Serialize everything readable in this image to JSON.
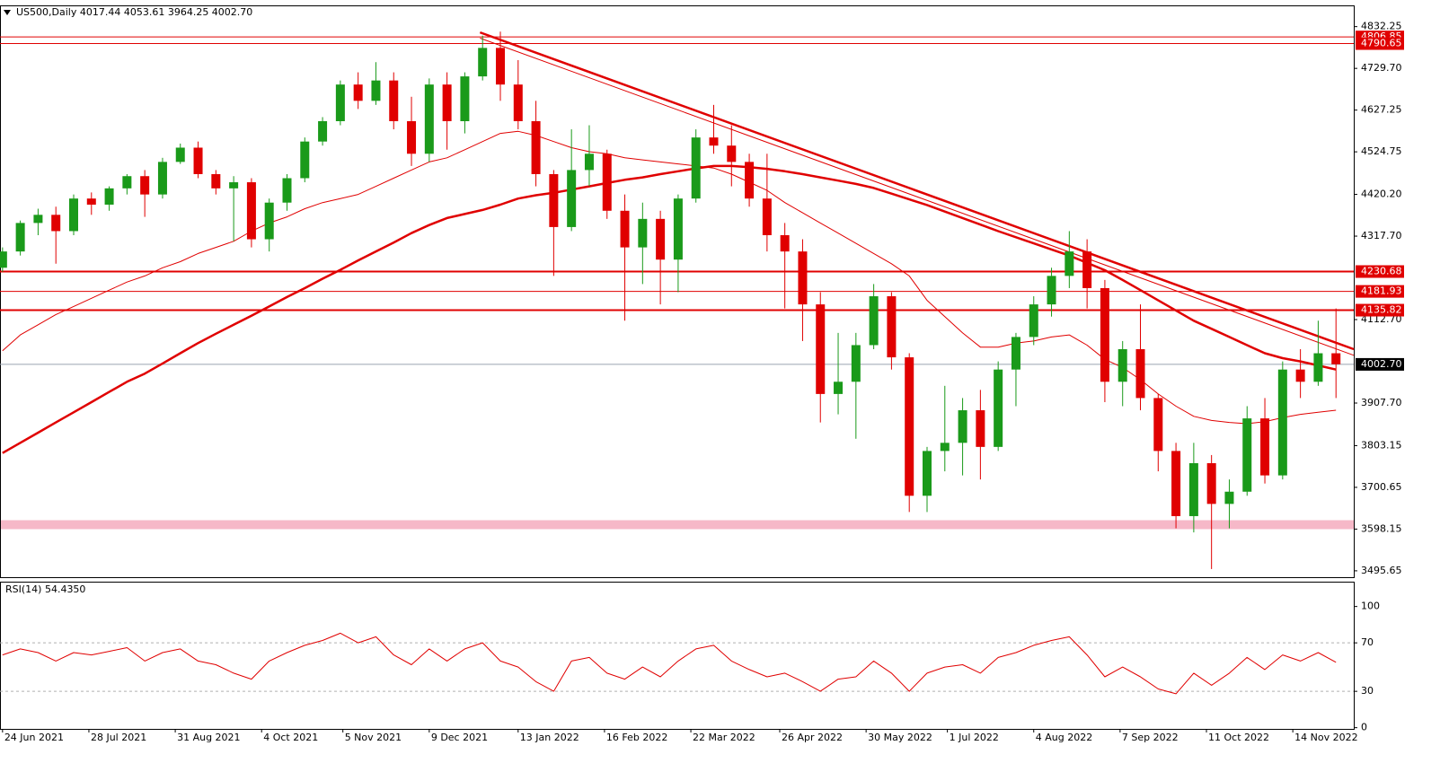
{
  "chart_data": {
    "type": "candlestick",
    "title": "US500,Daily  4017.44 4053.61 3964.25 4002.70",
    "x": [
      "2021-06-24",
      "2021-07-01",
      "2021-07-08",
      "2021-07-15",
      "2021-07-22",
      "2021-07-29",
      "2021-08-05",
      "2021-08-12",
      "2021-08-19",
      "2021-08-26",
      "2021-09-02",
      "2021-09-09",
      "2021-09-16",
      "2021-09-23",
      "2021-09-30",
      "2021-10-07",
      "2021-10-14",
      "2021-10-21",
      "2021-10-28",
      "2021-11-04",
      "2021-11-11",
      "2021-11-18",
      "2021-11-25",
      "2021-12-02",
      "2021-12-09",
      "2021-12-16",
      "2021-12-23",
      "2021-12-30",
      "2022-01-06",
      "2022-01-13",
      "2022-01-20",
      "2022-01-27",
      "2022-02-03",
      "2022-02-10",
      "2022-02-17",
      "2022-02-24",
      "2022-03-03",
      "2022-03-10",
      "2022-03-17",
      "2022-03-24",
      "2022-03-31",
      "2022-04-07",
      "2022-04-14",
      "2022-04-21",
      "2022-04-28",
      "2022-05-05",
      "2022-05-12",
      "2022-05-19",
      "2022-05-26",
      "2022-06-02",
      "2022-06-09",
      "2022-06-16",
      "2022-06-23",
      "2022-06-30",
      "2022-07-07",
      "2022-07-14",
      "2022-07-21",
      "2022-07-28",
      "2022-08-04",
      "2022-08-11",
      "2022-08-18",
      "2022-08-25",
      "2022-09-01",
      "2022-09-08",
      "2022-09-15",
      "2022-09-22",
      "2022-09-29",
      "2022-10-06",
      "2022-10-13",
      "2022-10-20",
      "2022-10-27",
      "2022-11-03",
      "2022-11-10",
      "2022-11-17",
      "2022-11-24",
      "2022-12-01"
    ],
    "open": [
      4240,
      4280,
      4350,
      4370,
      4330,
      4410,
      4395,
      4435,
      4465,
      4420,
      4500,
      4535,
      4470,
      4435,
      4450,
      4310,
      4400,
      4460,
      4550,
      4600,
      4690,
      4650,
      4700,
      4600,
      4520,
      4690,
      4600,
      4710,
      4780,
      4690,
      4600,
      4470,
      4340,
      4480,
      4520,
      4380,
      4290,
      4360,
      4260,
      4410,
      4560,
      4540,
      4500,
      4410,
      4320,
      4280,
      4150,
      3930,
      3960,
      4050,
      4170,
      4020,
      3680,
      3790,
      3810,
      3890,
      3800,
      3990,
      4070,
      4150,
      4220,
      4280,
      4190,
      3960,
      4040,
      3920,
      3790,
      3630,
      3760,
      3660,
      3690,
      3870,
      3730,
      3990,
      3960,
      4030
    ],
    "high": [
      4290,
      4356,
      4385,
      4390,
      4420,
      4425,
      4440,
      4470,
      4480,
      4510,
      4545,
      4550,
      4480,
      4465,
      4460,
      4410,
      4470,
      4560,
      4610,
      4700,
      4720,
      4745,
      4720,
      4660,
      4705,
      4720,
      4720,
      4810,
      4820,
      4750,
      4650,
      4480,
      4580,
      4590,
      4530,
      4420,
      4400,
      4380,
      4420,
      4580,
      4640,
      4590,
      4520,
      4520,
      4350,
      4310,
      4180,
      4080,
      4080,
      4200,
      4180,
      4030,
      3800,
      3950,
      3920,
      3940,
      4010,
      4080,
      4170,
      4240,
      4330,
      4310,
      4210,
      4060,
      4150,
      3930,
      3810,
      3810,
      3780,
      3720,
      3900,
      3920,
      4010,
      4040,
      4110,
      4140
    ],
    "low": [
      4230,
      4270,
      4320,
      4250,
      4320,
      4370,
      4380,
      4420,
      4365,
      4410,
      4495,
      4460,
      4420,
      4305,
      4290,
      4280,
      4380,
      4450,
      4540,
      4590,
      4630,
      4640,
      4580,
      4490,
      4500,
      4530,
      4570,
      4700,
      4650,
      4580,
      4440,
      4220,
      4330,
      4440,
      4360,
      4110,
      4200,
      4150,
      4180,
      4400,
      4520,
      4440,
      4390,
      4280,
      4140,
      4060,
      3860,
      3880,
      3820,
      4040,
      3990,
      3640,
      3640,
      3740,
      3730,
      3720,
      3790,
      3900,
      4050,
      4120,
      4190,
      4140,
      3910,
      3900,
      3890,
      3740,
      3600,
      3590,
      3500,
      3600,
      3680,
      3710,
      3720,
      3920,
      3950,
      3920
    ],
    "close": [
      4280,
      4350,
      4370,
      4330,
      4410,
      4395,
      4435,
      4465,
      4420,
      4500,
      4535,
      4470,
      4435,
      4450,
      4310,
      4400,
      4460,
      4550,
      4600,
      4690,
      4650,
      4700,
      4600,
      4520,
      4690,
      4600,
      4710,
      4780,
      4690,
      4600,
      4470,
      4340,
      4480,
      4520,
      4380,
      4290,
      4360,
      4260,
      4410,
      4560,
      4540,
      4500,
      4410,
      4320,
      4280,
      4150,
      3930,
      3960,
      4050,
      4170,
      4020,
      3680,
      3790,
      3810,
      3890,
      3800,
      3990,
      4070,
      4150,
      4220,
      4280,
      4190,
      3960,
      4040,
      3920,
      3790,
      3630,
      3760,
      3660,
      3690,
      3870,
      3730,
      3990,
      3960,
      4030,
      4003
    ],
    "up_color": "#1a9a1a",
    "down_color": "#e00000",
    "xlim": [
      "2021-06-23",
      "2022-12-08"
    ],
    "xticks": [
      {
        "value": "2021-06-24",
        "label": "24 Jun 2021"
      },
      {
        "value": "2021-07-28",
        "label": "28 Jul 2021"
      },
      {
        "value": "2021-08-31",
        "label": "31 Aug 2021"
      },
      {
        "value": "2021-10-04",
        "label": "4 Oct 2021"
      },
      {
        "value": "2021-11-05",
        "label": "5 Nov 2021"
      },
      {
        "value": "2021-12-09",
        "label": "9 Dec 2021"
      },
      {
        "value": "2022-01-13",
        "label": "13 Jan 2022"
      },
      {
        "value": "2022-02-16",
        "label": "16 Feb 2022"
      },
      {
        "value": "2022-03-22",
        "label": "22 Mar 2022"
      },
      {
        "value": "2022-04-26",
        "label": "26 Apr 2022"
      },
      {
        "value": "2022-05-30",
        "label": "30 May 2022"
      },
      {
        "value": "2022-07-01",
        "label": "1 Jul 2022"
      },
      {
        "value": "2022-08-04",
        "label": "4 Aug 2022"
      },
      {
        "value": "2022-09-07",
        "label": "7 Sep 2022"
      },
      {
        "value": "2022-10-11",
        "label": "11 Oct 2022"
      },
      {
        "value": "2022-11-14",
        "label": "14 Nov 2022"
      }
    ],
    "ylim": [
      3480,
      4880
    ],
    "yticks": [
      4832.25,
      {
        "value": 4729.7,
        "label": "4729.70"
      },
      4627.25,
      4524.75,
      {
        "value": 4420.2,
        "label": "4420.20"
      },
      {
        "value": 4317.7,
        "label": "4317.70"
      },
      {
        "value": 4112.7,
        "label": "4112.70"
      },
      {
        "value": 3907.7,
        "label": "3907.70"
      },
      3803.15,
      3700.65,
      3598.15,
      3495.65
    ],
    "lines": [
      {
        "color": "#e00000",
        "width": 1,
        "values": [
          4036,
          4075,
          4100,
          4125,
          4145,
          4165,
          4185,
          4205,
          4220,
          4240,
          4255,
          4275,
          4290,
          4305,
          4330,
          4350,
          4365,
          4385,
          4400,
          4410,
          4420,
          4440,
          4460,
          4480,
          4500,
          4510,
          4530,
          4550,
          4570,
          4575,
          4565,
          4550,
          4535,
          4525,
          4520,
          4510,
          4505,
          4500,
          4495,
          4490,
          4485,
          4470,
          4450,
          4430,
          4400,
          4375,
          4350,
          4325,
          4300,
          4275,
          4250,
          4220,
          4160,
          4120,
          4080,
          4045,
          4045,
          4055,
          4060,
          4070,
          4075,
          4050,
          4015,
          3995,
          3965,
          3930,
          3900,
          3875,
          3865,
          3860,
          3857,
          3862,
          3872,
          3880,
          3885,
          3890
        ]
      },
      {
        "color": "#e00000",
        "width": 2.5,
        "values": [
          3785,
          3810,
          3835,
          3860,
          3885,
          3910,
          3935,
          3960,
          3980,
          4005,
          4030,
          4055,
          4078,
          4100,
          4122,
          4145,
          4168,
          4190,
          4213,
          4235,
          4258,
          4280,
          4302,
          4325,
          4345,
          4362,
          4372,
          4382,
          4395,
          4410,
          4418,
          4424,
          4432,
          4440,
          4448,
          4456,
          4462,
          4470,
          4477,
          4484,
          4490,
          4490,
          4487,
          4483,
          4477,
          4470,
          4462,
          4454,
          4446,
          4436,
          4422,
          4408,
          4394,
          4378,
          4362,
          4346,
          4330,
          4315,
          4300,
          4285,
          4270,
          4252,
          4234,
          4210,
          4185,
          4160,
          4135,
          4110,
          4090,
          4070,
          4050,
          4030,
          4018,
          4010,
          4000,
          3990
        ]
      }
    ],
    "trendlines": [
      {
        "color": "#e00000",
        "width": 2.5,
        "x": [
          "2021-12-29",
          "2022-12-08"
        ],
        "y": [
          4818,
          4040
        ]
      },
      {
        "color": "#e00000",
        "width": 1,
        "x": [
          "2021-12-29",
          "2022-12-08"
        ],
        "y": [
          4804,
          4025
        ]
      }
    ],
    "levels": [
      {
        "value": 4806.85,
        "width": 1
      },
      {
        "value": 4790.65,
        "width": 1
      },
      {
        "value": 4230.68,
        "width": 2
      },
      {
        "value": 4181.93,
        "width": 1
      },
      {
        "value": 4135.82,
        "width": 2
      }
    ],
    "level_color": "#e00000",
    "zone": {
      "from": 3598,
      "to": 3620,
      "color": "#f6b8c8"
    },
    "last_price": {
      "value": 4002.7,
      "label": "4002.70"
    },
    "rsi": {
      "title": "RSI(14) 54.4350",
      "color": "#e00000",
      "values": [
        60,
        65,
        62,
        55,
        62,
        60,
        63,
        66,
        55,
        62,
        65,
        55,
        52,
        45,
        40,
        55,
        62,
        68,
        72,
        78,
        70,
        75,
        60,
        52,
        65,
        55,
        65,
        70,
        55,
        50,
        38,
        30,
        55,
        58,
        45,
        40,
        50,
        42,
        55,
        65,
        68,
        55,
        48,
        42,
        45,
        38,
        30,
        40,
        42,
        55,
        45,
        30,
        45,
        50,
        52,
        45,
        58,
        62,
        68,
        72,
        75,
        60,
        42,
        50,
        42,
        32,
        28,
        45,
        35,
        45,
        58,
        48,
        60,
        55,
        62,
        54
      ],
      "ylim": [
        -1,
        119
      ],
      "yticks": [
        100,
        70,
        30,
        0
      ],
      "levels": [
        70,
        30
      ]
    }
  }
}
